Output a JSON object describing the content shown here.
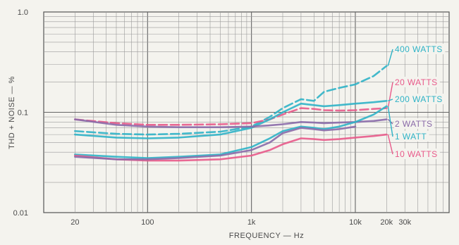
{
  "chart_data": {
    "type": "line",
    "title": "",
    "xlabel": "FREQUENCY — Hz",
    "ylabel": "THD + NOISE — %",
    "x_scale": "log",
    "y_scale": "log",
    "xlim": [
      10,
      80000
    ],
    "ylim": [
      0.01,
      1.0
    ],
    "x_ticks": [
      {
        "value": 20,
        "label": "20"
      },
      {
        "value": 100,
        "label": "100"
      },
      {
        "value": 1000,
        "label": "1k"
      },
      {
        "value": 10000,
        "label": "10k"
      },
      {
        "value": 20000,
        "label": "20k"
      },
      {
        "value": 30000,
        "label": "30k"
      }
    ],
    "y_ticks": [
      {
        "value": 1.0,
        "label": "1.0"
      },
      {
        "value": 0.1,
        "label": "0.1"
      },
      {
        "value": 0.01,
        "label": "0.01"
      }
    ],
    "grid": true,
    "legend": "right, labels at line ends",
    "series": [
      {
        "name": "400 WATTS",
        "color": "#2fb3c6",
        "dashed": true,
        "x": [
          20,
          50,
          100,
          200,
          500,
          1000,
          1500,
          2000,
          3000,
          4000,
          5000,
          7000,
          10000,
          15000,
          20000
        ],
        "y": [
          0.065,
          0.061,
          0.06,
          0.061,
          0.064,
          0.072,
          0.09,
          0.11,
          0.135,
          0.13,
          0.16,
          0.175,
          0.19,
          0.23,
          0.29
        ]
      },
      {
        "name": "20 WATTS",
        "color": "#e85a8a",
        "dashed": true,
        "x": [
          20,
          50,
          100,
          200,
          500,
          1000,
          1500,
          2000,
          3000,
          4000,
          5000,
          7000,
          10000,
          15000,
          20000
        ],
        "y": [
          0.085,
          0.078,
          0.075,
          0.075,
          0.076,
          0.078,
          0.085,
          0.095,
          0.11,
          0.108,
          0.105,
          0.104,
          0.105,
          0.108,
          0.11
        ]
      },
      {
        "name": "200 WATTS",
        "color": "#2fb3c6",
        "dashed": false,
        "x": [
          20,
          50,
          100,
          200,
          500,
          1000,
          1500,
          2000,
          3000,
          4000,
          5000,
          7000,
          10000,
          15000,
          20000
        ],
        "y": [
          0.06,
          0.056,
          0.055,
          0.056,
          0.06,
          0.07,
          0.085,
          0.1,
          0.122,
          0.118,
          0.115,
          0.118,
          0.122,
          0.126,
          0.13
        ]
      },
      {
        "name": "2 WATTS",
        "color": "#8a6aa8",
        "dashed": false,
        "x": [
          20,
          50,
          100,
          200,
          500,
          1000,
          1500,
          2000,
          3000,
          4000,
          5000,
          7000,
          10000,
          15000,
          20000
        ],
        "y": [
          0.085,
          0.075,
          0.072,
          0.071,
          0.071,
          0.072,
          0.074,
          0.076,
          0.08,
          0.079,
          0.078,
          0.079,
          0.08,
          0.082,
          0.085
        ]
      },
      {
        "name": "1 WATT",
        "color": "#2fb3c6",
        "dashed": false,
        "x": [
          20,
          50,
          100,
          200,
          500,
          1000,
          1500,
          2000,
          3000,
          4000,
          5000,
          7000,
          10000,
          15000,
          20000
        ],
        "y": [
          0.038,
          0.036,
          0.035,
          0.036,
          0.038,
          0.045,
          0.055,
          0.065,
          0.072,
          0.07,
          0.068,
          0.072,
          0.08,
          0.095,
          0.115
        ]
      },
      {
        "name": "10 WATTS",
        "color": "#e85a8a",
        "dashed": false,
        "x": [
          20,
          50,
          100,
          200,
          500,
          1000,
          1500,
          2000,
          3000,
          4000,
          5000,
          7000,
          10000,
          15000,
          20000
        ],
        "y": [
          0.037,
          0.034,
          0.033,
          0.033,
          0.034,
          0.037,
          0.042,
          0.048,
          0.055,
          0.054,
          0.053,
          0.054,
          0.056,
          0.058,
          0.06
        ]
      },
      {
        "name": "",
        "color": "#8a6aa8",
        "dashed": false,
        "x": [
          20,
          50,
          100,
          200,
          500,
          1000,
          1500,
          2000,
          3000,
          4000,
          5000,
          7000,
          10000
        ],
        "y": [
          0.036,
          0.034,
          0.034,
          0.035,
          0.037,
          0.042,
          0.05,
          0.062,
          0.07,
          0.068,
          0.066,
          0.068,
          0.072
        ]
      }
    ]
  }
}
